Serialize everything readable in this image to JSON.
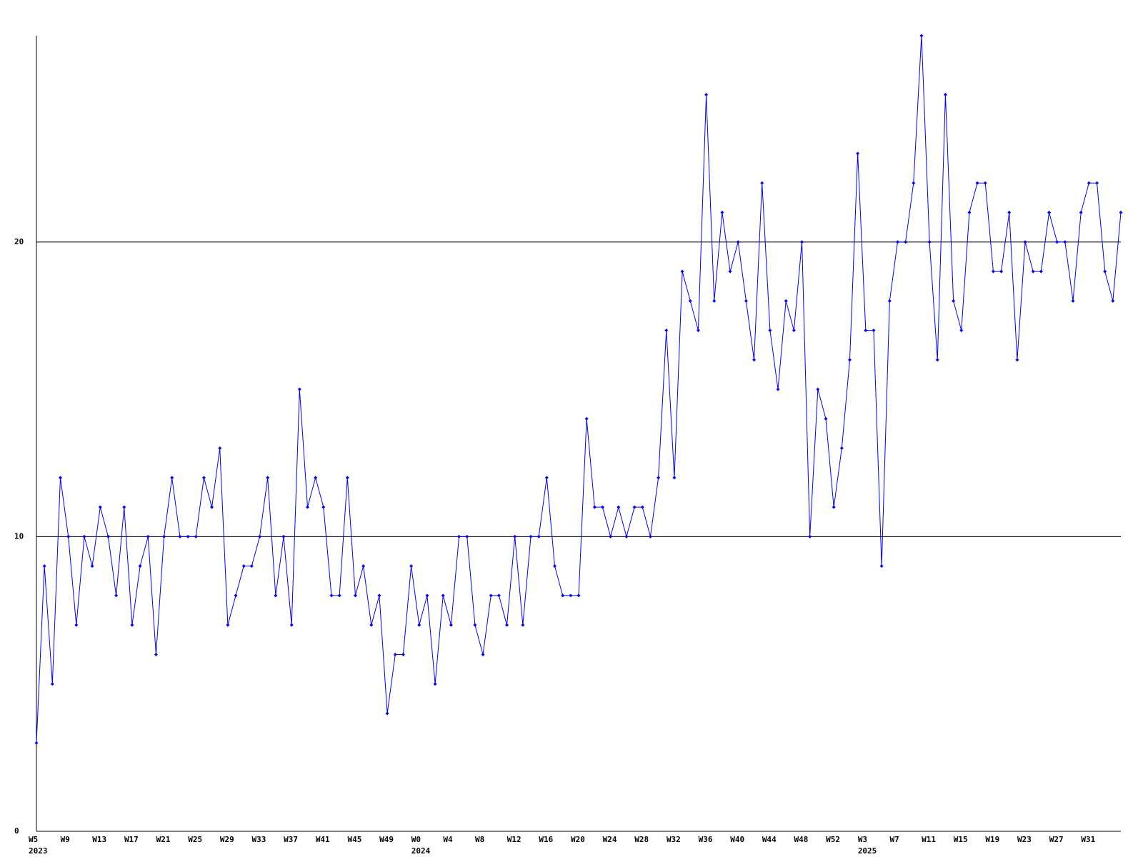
{
  "chart_data": {
    "type": "line",
    "categories": [
      "W5",
      null,
      null,
      null,
      "W9",
      null,
      null,
      null,
      "W13",
      null,
      null,
      null,
      "W17",
      null,
      null,
      null,
      "W21",
      null,
      null,
      null,
      "W25",
      null,
      null,
      null,
      "W29",
      null,
      null,
      null,
      "W33",
      null,
      null,
      null,
      "W37",
      null,
      null,
      null,
      "W41",
      null,
      null,
      null,
      "W45",
      null,
      null,
      null,
      "W49",
      null,
      null,
      null,
      "W0",
      null,
      null,
      null,
      "W4",
      null,
      null,
      null,
      "W8",
      null,
      null,
      null,
      "W12",
      null,
      null,
      null,
      "W16",
      null,
      null,
      null,
      "W20",
      null,
      null,
      null,
      "W24",
      null,
      null,
      null,
      "W28",
      null,
      null,
      null,
      "W32",
      null,
      null,
      null,
      "W36",
      null,
      null,
      null,
      "W40",
      null,
      null,
      null,
      "W44",
      null,
      null,
      null,
      "W48",
      null,
      null,
      null,
      "W52",
      null,
      null,
      null,
      "W3",
      null,
      null,
      null,
      "W7",
      null,
      null,
      null,
      "W11",
      null,
      null,
      null,
      "W15",
      null,
      null,
      null,
      "W19",
      null,
      null,
      null,
      "W23",
      null,
      null,
      null,
      "W27",
      null,
      null,
      null,
      "W31",
      null,
      null,
      null,
      null
    ],
    "years": [
      "2023",
      null,
      null,
      null,
      null,
      null,
      null,
      null,
      null,
      null,
      null,
      null,
      null,
      null,
      null,
      null,
      null,
      null,
      null,
      null,
      null,
      null,
      null,
      null,
      null,
      null,
      null,
      null,
      null,
      null,
      null,
      null,
      null,
      null,
      null,
      null,
      null,
      null,
      null,
      null,
      null,
      null,
      null,
      null,
      null,
      null,
      null,
      null,
      "2024",
      null,
      null,
      null,
      null,
      null,
      null,
      null,
      null,
      null,
      null,
      null,
      null,
      null,
      null,
      null,
      null,
      null,
      null,
      null,
      null,
      null,
      null,
      null,
      null,
      null,
      null,
      null,
      null,
      null,
      null,
      null,
      null,
      null,
      null,
      null,
      null,
      null,
      null,
      null,
      null,
      null,
      null,
      null,
      null,
      null,
      null,
      null,
      null,
      null,
      null,
      null,
      null,
      null,
      null,
      null,
      "2025",
      null,
      null,
      null,
      null,
      null,
      null,
      null,
      null,
      null,
      null,
      null,
      null,
      null,
      null,
      null,
      null,
      null,
      null,
      null,
      null,
      null,
      null,
      null,
      null,
      null,
      null,
      null,
      null,
      null,
      null,
      null
    ],
    "series": [
      {
        "color": "#0000ff",
        "values": [
          3,
          9,
          5,
          12,
          10,
          7,
          10,
          9,
          11,
          10,
          8,
          11,
          7,
          9,
          10,
          6,
          10,
          12,
          10,
          10,
          10,
          12,
          11,
          13,
          7,
          8,
          9,
          9,
          10,
          12,
          8,
          10,
          7,
          15,
          11,
          12,
          11,
          8,
          8,
          12,
          8,
          9,
          7,
          8,
          4,
          6,
          6,
          9,
          7,
          8,
          5,
          8,
          7,
          10,
          10,
          7,
          6,
          8,
          8,
          7,
          10,
          7,
          10,
          10,
          12,
          9,
          8,
          8,
          8,
          14,
          11,
          11,
          10,
          11,
          10,
          11,
          11,
          10,
          12,
          17,
          12,
          19,
          18,
          17,
          25,
          18,
          21,
          19,
          20,
          18,
          16,
          22,
          17,
          15,
          18,
          17,
          20,
          10,
          15,
          14,
          11,
          13,
          16,
          23,
          17,
          17,
          9,
          18,
          20,
          20,
          22,
          27,
          20,
          16,
          25,
          18,
          17,
          21,
          22,
          22,
          19,
          19,
          21,
          16,
          20,
          19,
          19,
          21,
          20,
          20,
          18,
          21,
          22,
          22,
          19,
          18,
          21
        ]
      }
    ],
    "ylim": [
      0,
      27
    ],
    "yticks": [
      0,
      10,
      20
    ],
    "grid": true
  }
}
